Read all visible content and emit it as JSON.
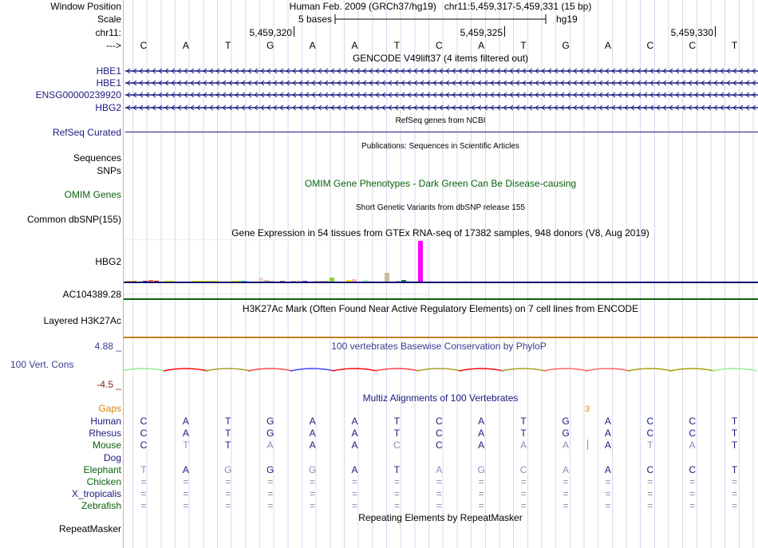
{
  "header": {
    "window_position_label": "Window Position",
    "scale_label": "Scale",
    "chrom_label": "chr11:",
    "strand_label": "--->",
    "assembly_title": "Human Feb. 2009 (GRCh37/hg19)   chr11:5,459,317-5,459,331 (15 bp)",
    "scale_text": "5 bases",
    "scale_db": "hg19",
    "ruler": [
      "5,459,320",
      "5,459,325",
      "5,459,330"
    ],
    "sequence": [
      "C",
      "A",
      "T",
      "G",
      "A",
      "A",
      "T",
      "C",
      "A",
      "T",
      "G",
      "A",
      "C",
      "C",
      "T"
    ]
  },
  "tracks": {
    "gencode": {
      "title": "GENCODE V49lift37 (4 items filtered out)",
      "items": [
        "HBE1",
        "HBE1",
        "ENSG00000239920",
        "HBG2"
      ]
    },
    "refseq": {
      "label": "RefSeq Curated",
      "title": "RefSeq genes from NCBI"
    },
    "publications": {
      "title": "Publications: Sequences in Scientific Articles",
      "labels": [
        "Sequences",
        "SNPs"
      ]
    },
    "omim": {
      "label": "OMIM Genes",
      "title": "OMIM Gene Phenotypes - Dark Green Can Be Disease-causing"
    },
    "dbsnp": {
      "label": "Common dbSNP(155)",
      "title": "Short Genetic Variants from dbSNP release 155"
    },
    "gtex": {
      "title": "Gene Expression in 54 tissues from GTEx RNA-seq of 17382 samples, 948 donors (V8, Aug 2019)",
      "gene1": "HBG2",
      "gene2": "AC104389.28",
      "values": [
        3,
        4,
        2,
        4,
        5,
        4,
        2,
        3,
        3,
        2,
        2,
        2,
        3,
        3,
        3,
        3,
        3,
        2,
        2,
        3,
        3,
        3,
        1.5,
        1.5,
        11,
        6,
        3,
        2,
        3,
        2,
        3,
        6,
        3,
        2,
        4,
        3,
        3,
        12,
        2,
        1.5,
        6,
        8,
        2,
        6,
        4,
        1.5,
        1.5,
        23,
        2,
        4,
        6,
        4,
        3,
        100
      ],
      "colors": [
        "#FFA54F",
        "#EE9A00",
        "#8FBC8F",
        "#8B1C62",
        "#EE6A50",
        "#FF0000",
        "#CDB79E",
        "#EEEE00",
        "#EEEE00",
        "#EEEE00",
        "#EEEE00",
        "#EEEE00",
        "#EEEE00",
        "#EEEE00",
        "#EEEE00",
        "#EEEE00",
        "#EEEE00",
        "#EEEE00",
        "#EEEE00",
        "#EEEE00",
        "#EEEE00",
        "#00CDCD",
        "#EE82EE",
        "#9AC0CD",
        "#EED5D2",
        "#CDB79E",
        "#CDB79E",
        "#FFDAB9",
        "#8B7355",
        "#8B7355",
        "#CDAA7D",
        "#EED5D2",
        "#9A32CD",
        "#7A378B",
        "#CDB79E",
        "#CDB79E",
        "#CDB79E",
        "#9ACD32",
        "#D9D9D9",
        "#7777FF",
        "#FFD700",
        "#FFB6C1",
        "#CD9B1D",
        "#B4EEB4",
        "#D9D9D9",
        "#3A5FCD",
        "#1E90FF",
        "#CDB79E",
        "#FFDAB9",
        "#AAAAAA",
        "#008B45",
        "#EED5D2",
        "#EED5D2",
        "#FF00FF"
      ]
    },
    "h3k27ac": {
      "label": "Layered H3K27Ac",
      "title": "H3K27Ac Mark (Often Found Near Active Regulatory Elements) on 7 cell lines from ENCODE"
    },
    "phylop": {
      "label": "100 Vert. Cons",
      "max": "4.88 _",
      "min": "-4.5 _",
      "title": "100 vertebrates Basewise Conservation by PhyloP",
      "colors": [
        "#90ee90",
        "#ff0000",
        "#a0a020",
        "#ff4040",
        "#4040ff",
        "#ff0000",
        "#ff4040",
        "#a0a020",
        "#ff0000",
        "#a0a020",
        "#ff6060",
        "#ff6060",
        "#a0a000",
        "#a0a000",
        "#90ee90"
      ]
    },
    "multiz": {
      "title": "Multiz Alignments of 100 Vertebrates",
      "gaps_label": "Gaps",
      "gap_count": "3",
      "species": [
        {
          "name": "Human",
          "color": "#1a1a80",
          "seq": "CATGAATCATGACCT",
          "faded": "000000000000000"
        },
        {
          "name": "Rhesus",
          "color": "#1a1a80",
          "seq": "CATGAATCATGACCT",
          "faded": "000000000000000"
        },
        {
          "name": "Mouse",
          "color": "#0b610b",
          "seq": "CTTAAACCAAAATAT",
          "faded": "010100100110110"
        },
        {
          "name": "Dog",
          "color": "#1a1a80",
          "seq": "",
          "faded": ""
        },
        {
          "name": "Elephant",
          "color": "#0b610b",
          "seq": "TAGGGATAGCAACCT",
          "faded": "101010011110000"
        },
        {
          "name": "Chicken",
          "color": "#0b610b",
          "seq": "===============",
          "faded": "111111111111111"
        },
        {
          "name": "X_tropicalis",
          "color": "#1a1a80",
          "seq": "===============",
          "faded": "111111111111111"
        },
        {
          "name": "Zebrafish",
          "color": "#0b610b",
          "seq": "===============",
          "faded": "111111111111111"
        }
      ]
    },
    "repeatmasker": {
      "label": "RepeatMasker",
      "title": "Repeating Elements by RepeatMasker"
    }
  }
}
